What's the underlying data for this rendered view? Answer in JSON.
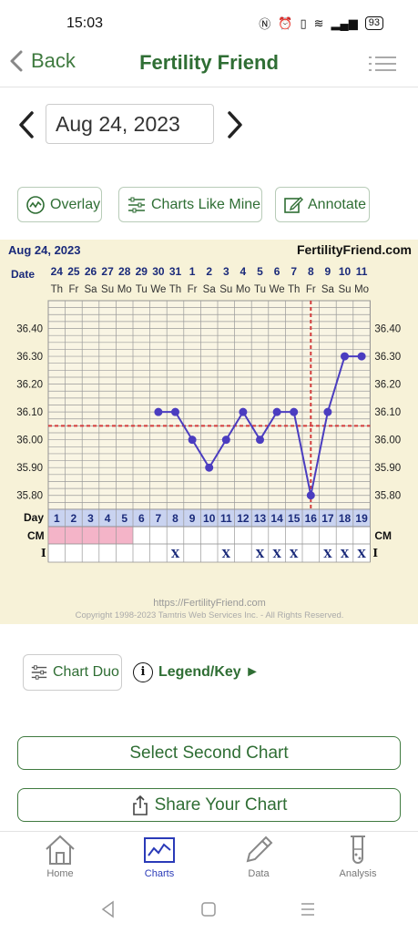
{
  "status": {
    "time": "15:03",
    "battery": "93"
  },
  "nav": {
    "back_label": "Back",
    "title": "Fertility Friend"
  },
  "date_picker": {
    "value": "Aug 24, 2023"
  },
  "tools": {
    "overlay": "Overlay",
    "charts_like_mine": "Charts Like Mine",
    "annotate": "Annotate"
  },
  "chart_data": {
    "type": "line",
    "title": "Aug 24, 2023",
    "site": "FertilityFriend.com",
    "date_label": "Date",
    "dates": [
      "24",
      "25",
      "26",
      "27",
      "28",
      "29",
      "30",
      "31",
      "1",
      "2",
      "3",
      "4",
      "5",
      "6",
      "7",
      "8",
      "9",
      "10",
      "11"
    ],
    "weekdays": [
      "Th",
      "Fr",
      "Sa",
      "Su",
      "Mo",
      "Tu",
      "We",
      "Th",
      "Fr",
      "Sa",
      "Su",
      "Mo",
      "Tu",
      "We",
      "Th",
      "Fr",
      "Sa",
      "Su",
      "Mo"
    ],
    "cycle_day_label": "Day",
    "cycle_days": [
      "1",
      "2",
      "3",
      "4",
      "5",
      "6",
      "7",
      "8",
      "9",
      "10",
      "11",
      "12",
      "13",
      "14",
      "15",
      "16",
      "17",
      "18",
      "19"
    ],
    "y_ticks": [
      "36.40",
      "36.30",
      "36.20",
      "36.10",
      "36.00",
      "35.90",
      "35.80"
    ],
    "ylim": [
      35.75,
      36.5
    ],
    "grid": true,
    "series": [
      {
        "values": [
          null,
          null,
          null,
          null,
          null,
          null,
          36.1,
          36.1,
          36.0,
          35.9,
          36.0,
          36.1,
          36.0,
          36.1,
          36.1,
          35.8,
          36.1,
          36.3,
          36.3
        ],
        "color": "#4b3dc0"
      }
    ],
    "coverline": 36.05,
    "ovulation_day": 16,
    "cm_label": "CM",
    "cm_pink_days": [
      1,
      2,
      3,
      4,
      5
    ],
    "i_label": "I",
    "intercourse_mark": "X",
    "intercourse_days": [
      8,
      11,
      13,
      14,
      15,
      17,
      18,
      19
    ],
    "footer_url": "https://FertilityFriend.com",
    "copyright": "Copyright 1998-2023 Tamtris Web Services Inc. - All Rights Reserved."
  },
  "actions": {
    "chart_duo": "Chart Duo",
    "legend_key": "Legend/Key ►",
    "select_second": "Select Second Chart",
    "share": "Share Your Chart"
  },
  "tabs": [
    {
      "label": "Home",
      "icon": "home-icon"
    },
    {
      "label": "Charts",
      "icon": "chart-icon"
    },
    {
      "label": "Data",
      "icon": "pencil-icon"
    },
    {
      "label": "Analysis",
      "icon": "test-tube-icon"
    }
  ],
  "colors": {
    "brand_green": "#2f6e34",
    "series": "#4b3dc0",
    "coverline": "#d43c3c",
    "cm_pink": "#f4b4c8",
    "chart_bg": "#f7f2d8",
    "active_tab": "#2a3ab8"
  }
}
